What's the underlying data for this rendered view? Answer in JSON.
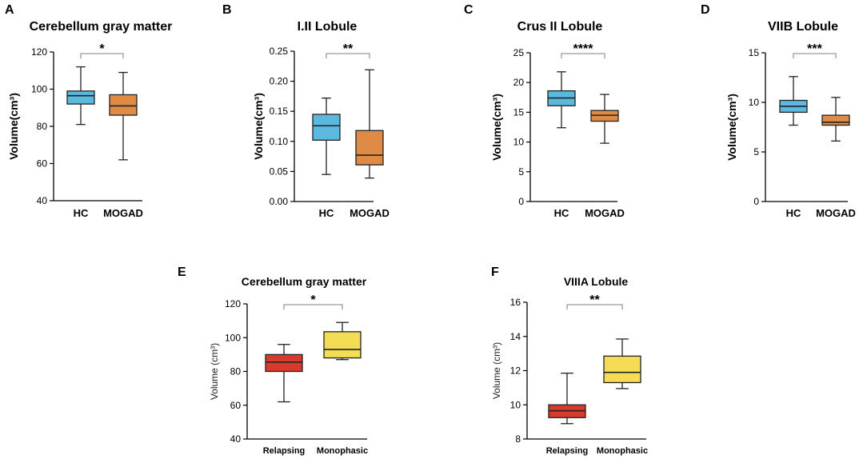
{
  "chart_data": [
    {
      "panel": "A",
      "type": "box",
      "title": "Cerebellum gray matter",
      "ylabel": "Volume(cm³)",
      "ylim": [
        40,
        120
      ],
      "yticks": [
        "40",
        "60",
        "80",
        "100",
        "120"
      ],
      "categories": [
        "HC",
        "MOGAD"
      ],
      "boxes": [
        {
          "name": "HC",
          "min": 81,
          "q1": 92,
          "median": 96.5,
          "q3": 99,
          "max": 112,
          "color": "#5bb8de"
        },
        {
          "name": "MOGAD",
          "min": 62,
          "q1": 86,
          "median": 91,
          "q3": 97,
          "max": 109,
          "color": "#e08b45"
        }
      ],
      "significance": "*"
    },
    {
      "panel": "B",
      "type": "box",
      "title": "I.II Lobule",
      "ylabel": "Volume(cm³)",
      "ylim": [
        0,
        0.25
      ],
      "yticks": [
        "0.00",
        "0.05",
        "0.10",
        "0.15",
        "0.20",
        "0.25"
      ],
      "categories": [
        "HC",
        "MOGAD"
      ],
      "boxes": [
        {
          "name": "HC",
          "min": 0.045,
          "q1": 0.102,
          "median": 0.126,
          "q3": 0.145,
          "max": 0.172,
          "color": "#5bb8de"
        },
        {
          "name": "MOGAD",
          "min": 0.039,
          "q1": 0.061,
          "median": 0.077,
          "q3": 0.118,
          "max": 0.219,
          "color": "#e08b45"
        }
      ],
      "significance": "**"
    },
    {
      "panel": "C",
      "type": "box",
      "title": "Crus II Lobule",
      "ylabel": "Volume(cm³)",
      "ylim": [
        0,
        25
      ],
      "yticks": [
        "0",
        "5",
        "10",
        "15",
        "20",
        "25"
      ],
      "categories": [
        "HC",
        "MOGAD"
      ],
      "boxes": [
        {
          "name": "HC",
          "min": 12.4,
          "q1": 16.1,
          "median": 17.4,
          "q3": 18.6,
          "max": 21.8,
          "color": "#5bb8de"
        },
        {
          "name": "MOGAD",
          "min": 9.8,
          "q1": 13.5,
          "median": 14.5,
          "q3": 15.3,
          "max": 18.0,
          "color": "#e08b45"
        }
      ],
      "significance": "****"
    },
    {
      "panel": "D",
      "type": "box",
      "title": "VIIB Lobule",
      "ylabel": "Volume(cm³)",
      "ylim": [
        0,
        15
      ],
      "yticks": [
        "0",
        "5",
        "10",
        "15"
      ],
      "categories": [
        "HC",
        "MOGAD"
      ],
      "boxes": [
        {
          "name": "HC",
          "min": 7.7,
          "q1": 9.0,
          "median": 9.6,
          "q3": 10.2,
          "max": 12.6,
          "color": "#5bb8de"
        },
        {
          "name": "MOGAD",
          "min": 6.1,
          "q1": 7.7,
          "median": 8.0,
          "q3": 8.7,
          "max": 10.5,
          "color": "#e08b45"
        }
      ],
      "significance": "***"
    },
    {
      "panel": "E",
      "type": "box",
      "title": "Cerebellum gray matter",
      "ylabel": "Volume (cm³)",
      "ylim": [
        40,
        120
      ],
      "yticks": [
        "40",
        "60",
        "80",
        "100",
        "120"
      ],
      "categories": [
        "Relapsing",
        "Monophasic"
      ],
      "boxes": [
        {
          "name": "Relapsing",
          "min": 62,
          "q1": 80,
          "median": 85.5,
          "q3": 90,
          "max": 96,
          "color": "#d93a2e"
        },
        {
          "name": "Monophasic",
          "min": 87,
          "q1": 88,
          "median": 93,
          "q3": 103.5,
          "max": 109,
          "color": "#f4dc55"
        }
      ],
      "significance": "*"
    },
    {
      "panel": "F",
      "type": "box",
      "title": "VIIIA Lobule",
      "ylabel": "Volume (cm³)",
      "ylim": [
        8,
        16
      ],
      "yticks": [
        "8",
        "10",
        "12",
        "14",
        "16"
      ],
      "categories": [
        "Relapsing",
        "Monophasic"
      ],
      "boxes": [
        {
          "name": "Relapsing",
          "min": 8.9,
          "q1": 9.25,
          "median": 9.65,
          "q3": 10.0,
          "max": 11.85,
          "color": "#d93a2e"
        },
        {
          "name": "Monophasic",
          "min": 10.95,
          "q1": 11.3,
          "median": 11.9,
          "q3": 12.85,
          "max": 13.85,
          "color": "#f4dc55"
        }
      ],
      "significance": "**"
    }
  ]
}
